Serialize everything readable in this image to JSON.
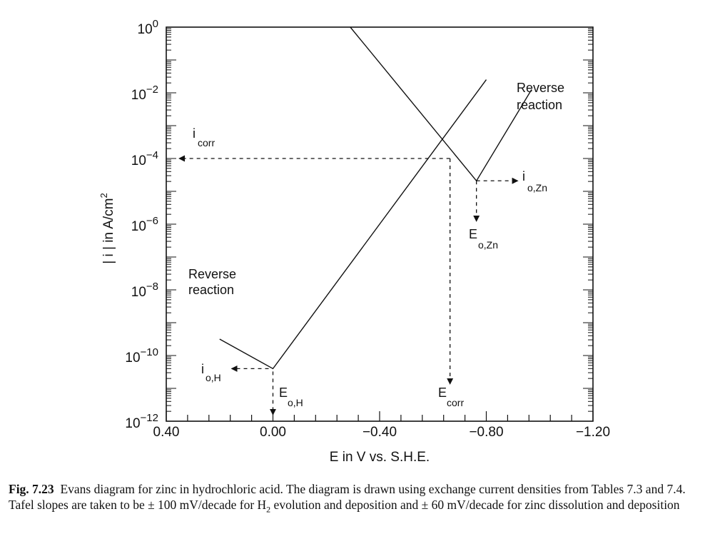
{
  "chart_data": {
    "type": "line",
    "xlabel": "E in V vs. S.H.E.",
    "ylabel_main": "| i | in A/cm",
    "ylabel_sup": "2",
    "x_axis_direction": "reversed",
    "xlim": [
      0.4,
      -1.2
    ],
    "ylim_log10": [
      -12,
      0
    ],
    "x_tick_labels": [
      "0.40",
      "0.00",
      "−0.40",
      "−0.80",
      "−1.20"
    ],
    "x_ticks": [
      0.4,
      0.0,
      -0.4,
      -0.8,
      -1.2
    ],
    "y_tick_base": "10",
    "y_tick_exponents": [
      "0",
      "−2",
      "−4",
      "−6",
      "−8",
      "−10",
      "−12"
    ],
    "y_ticks_log10": [
      0,
      -2,
      -4,
      -6,
      -8,
      -10,
      -12
    ],
    "series": [
      {
        "points": [
          [
            0.2,
            -9.5
          ],
          [
            0.0,
            -10.4
          ],
          [
            -0.8,
            -1.6
          ]
        ]
      },
      {
        "points": [
          [
            -0.29,
            0.0
          ],
          [
            -0.763,
            -4.68
          ],
          [
            -0.97,
            -1.9
          ]
        ]
      }
    ],
    "corrosion_point": {
      "E": -0.664,
      "log_i": -4.0
    },
    "hydrogen_point": {
      "E": 0.0,
      "log_i": -10.4
    },
    "zinc_point": {
      "E": -0.763,
      "log_i": -4.68
    },
    "annotations": {
      "reverse_left_1": "Reverse",
      "reverse_left_2": "reaction",
      "reverse_right_1": "Reverse",
      "reverse_right_2": "reaction",
      "icorr_main": "i",
      "icorr_sub": "corr",
      "ioH_main": "i",
      "ioH_sub": "o,H",
      "EoH_main": "E",
      "EoH_sub": "o,H",
      "Ecorr_main": "E",
      "Ecorr_sub": "corr",
      "ioZn_main": "i",
      "ioZn_sub": "o,Zn",
      "EoZn_main": "E",
      "EoZn_sub": "o,Zn"
    }
  },
  "caption": {
    "label": "Fig. 7.23",
    "text_1": "Evans diagram for zinc in hydrochloric acid. The diagram is drawn using exchange current densities from Tables 7.3 and 7.4. Tafel slopes are taken to be ± 100 mV/decade for H",
    "text_sub": "2",
    "text_2": " evolution and deposition and ± 60 mV/decade for zinc dissolution and deposition"
  }
}
